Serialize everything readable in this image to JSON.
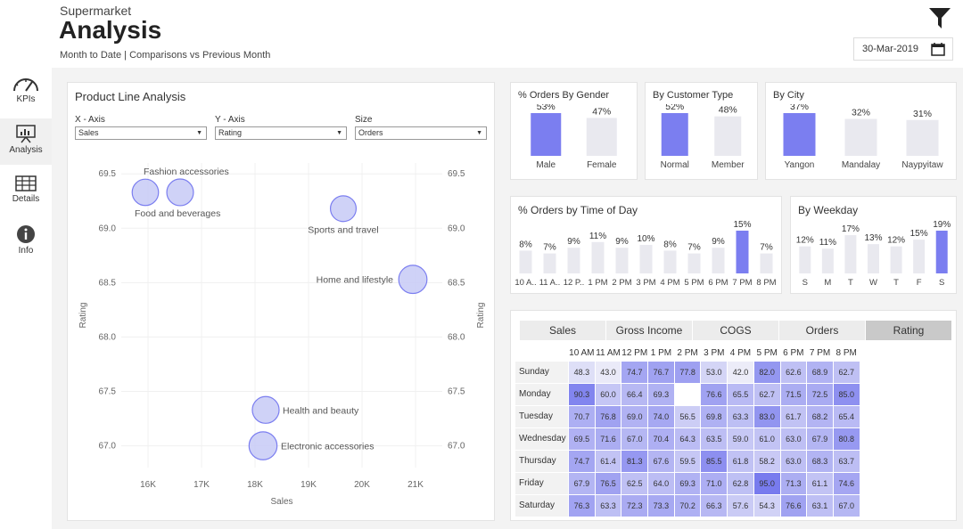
{
  "header": {
    "app_name": "Supermarket",
    "title": "Analysis",
    "caption": "Month to Date | Comparisons vs Previous Month",
    "date": "30-Mar-2019"
  },
  "icons": {
    "filter": "filter-funnel-icon",
    "calendar": "calendar-icon"
  },
  "sidebar": {
    "items": [
      {
        "label": "KPIs",
        "icon": "gauge-icon",
        "active": false
      },
      {
        "label": "Analysis",
        "icon": "presentation-chart-icon",
        "active": true
      },
      {
        "label": "Details",
        "icon": "table-grid-icon",
        "active": false
      },
      {
        "label": "Info",
        "icon": "info-icon",
        "active": false
      }
    ]
  },
  "product_line": {
    "title": "Product Line Analysis",
    "x_axis_label": "X - Axis",
    "x_axis_value": "Sales",
    "y_axis_label": "Y - Axis",
    "y_axis_value": "Rating",
    "size_label": "Size",
    "size_value": "Orders"
  },
  "gender": {
    "title": "% Orders By Gender",
    "bars": [
      {
        "label": "Male",
        "value": 53,
        "text": "53%"
      },
      {
        "label": "Female",
        "value": 47,
        "text": "47%"
      }
    ]
  },
  "customer": {
    "title": "By Customer Type",
    "bars": [
      {
        "label": "Normal",
        "value": 52,
        "text": "52%"
      },
      {
        "label": "Member",
        "value": 48,
        "text": "48%"
      }
    ]
  },
  "city": {
    "title": "By City",
    "bars": [
      {
        "label": "Yangon",
        "value": 37,
        "text": "37%"
      },
      {
        "label": "Mandalay",
        "value": 32,
        "text": "32%"
      },
      {
        "label": "Naypyitaw",
        "value": 31,
        "text": "31%"
      }
    ]
  },
  "time_of_day": {
    "title": "% Orders by Time of Day",
    "bars": [
      {
        "label": "10 A..",
        "value": 8,
        "text": "8%"
      },
      {
        "label": "11 A..",
        "value": 7,
        "text": "7%"
      },
      {
        "label": "12 P..",
        "value": 9,
        "text": "9%"
      },
      {
        "label": "1 PM",
        "value": 11,
        "text": "11%"
      },
      {
        "label": "2 PM",
        "value": 9,
        "text": "9%"
      },
      {
        "label": "3 PM",
        "value": 10,
        "text": "10%"
      },
      {
        "label": "4 PM",
        "value": 8,
        "text": "8%"
      },
      {
        "label": "5 PM",
        "value": 7,
        "text": "7%"
      },
      {
        "label": "6 PM",
        "value": 9,
        "text": "9%"
      },
      {
        "label": "7 PM",
        "value": 15,
        "text": "15%"
      },
      {
        "label": "8 PM",
        "value": 7,
        "text": "7%"
      }
    ]
  },
  "weekday": {
    "title": "By Weekday",
    "bars": [
      {
        "label": "S",
        "value": 12,
        "text": "12%"
      },
      {
        "label": "M",
        "value": 11,
        "text": "11%"
      },
      {
        "label": "T",
        "value": 17,
        "text": "17%"
      },
      {
        "label": "W",
        "value": 13,
        "text": "13%"
      },
      {
        "label": "T",
        "value": 12,
        "text": "12%"
      },
      {
        "label": "F",
        "value": 15,
        "text": "15%"
      },
      {
        "label": "S",
        "value": 19,
        "text": "19%"
      }
    ]
  },
  "heatmap": {
    "tabs": [
      "Sales",
      "Gross Income",
      "COGS",
      "Orders",
      "Rating"
    ],
    "active_tab": "Rating",
    "hours": [
      "10 AM",
      "11 AM",
      "12 PM",
      "1 PM",
      "2 PM",
      "3 PM",
      "4 PM",
      "5 PM",
      "6 PM",
      "7 PM",
      "8 PM"
    ],
    "rows": [
      {
        "day": "Sunday",
        "values": [
          "48.3",
          "43.0",
          "74.7",
          "76.7",
          "77.8",
          "53.0",
          "42.0",
          "82.0",
          "62.6",
          "68.9",
          "62.7"
        ]
      },
      {
        "day": "Monday",
        "values": [
          "90.3",
          "60.0",
          "66.4",
          "69.3",
          "",
          "76.6",
          "65.5",
          "62.7",
          "71.5",
          "72.5",
          "85.0"
        ]
      },
      {
        "day": "Tuesday",
        "values": [
          "70.7",
          "76.8",
          "69.0",
          "74.0",
          "56.5",
          "69.8",
          "63.3",
          "83.0",
          "61.7",
          "68.2",
          "65.4"
        ]
      },
      {
        "day": "Wednesday",
        "values": [
          "69.5",
          "71.6",
          "67.0",
          "70.4",
          "64.3",
          "63.5",
          "59.0",
          "61.0",
          "63.0",
          "67.9",
          "80.8"
        ]
      },
      {
        "day": "Thursday",
        "values": [
          "74.7",
          "61.4",
          "81.3",
          "67.6",
          "59.5",
          "85.5",
          "61.8",
          "58.2",
          "63.0",
          "68.3",
          "63.7"
        ]
      },
      {
        "day": "Friday",
        "values": [
          "67.9",
          "76.5",
          "62.5",
          "64.0",
          "69.3",
          "71.0",
          "62.8",
          "95.0",
          "71.3",
          "61.1",
          "74.6"
        ]
      },
      {
        "day": "Saturday",
        "values": [
          "76.3",
          "63.3",
          "72.3",
          "73.3",
          "70.2",
          "66.3",
          "57.6",
          "54.3",
          "76.6",
          "63.1",
          "67.0"
        ]
      }
    ]
  },
  "chart_data": [
    {
      "type": "scatter",
      "title": "",
      "xlabel": "Sales",
      "ylabel": "Rating",
      "xlim": [
        15500,
        21500
      ],
      "ylim": [
        66.8,
        69.6
      ],
      "xticks": [
        "16K",
        "17K",
        "18K",
        "19K",
        "20K",
        "21K"
      ],
      "yticks": [
        "67.0",
        "67.5",
        "68.0",
        "68.5",
        "69.0",
        "69.5"
      ],
      "points": [
        {
          "label": "Fashion accessories",
          "x": 16600,
          "y": 69.33,
          "size": 178
        },
        {
          "label": "Food and beverages",
          "x": 15950,
          "y": 69.33,
          "size": 174
        },
        {
          "label": "Sports and travel",
          "x": 19650,
          "y": 69.18,
          "size": 166
        },
        {
          "label": "Home and lifestyle",
          "x": 20950,
          "y": 68.53,
          "size": 200
        },
        {
          "label": "Health and beauty",
          "x": 18200,
          "y": 67.33,
          "size": 180
        },
        {
          "label": "Electronic accessories",
          "x": 18150,
          "y": 67.0,
          "size": 196
        }
      ]
    }
  ],
  "colors": {
    "accent": "#7b7ef0",
    "bar_default": "#e9e9ef",
    "bubble_fill": "#c7caf6",
    "bubble_stroke": "#7b7ef0"
  }
}
